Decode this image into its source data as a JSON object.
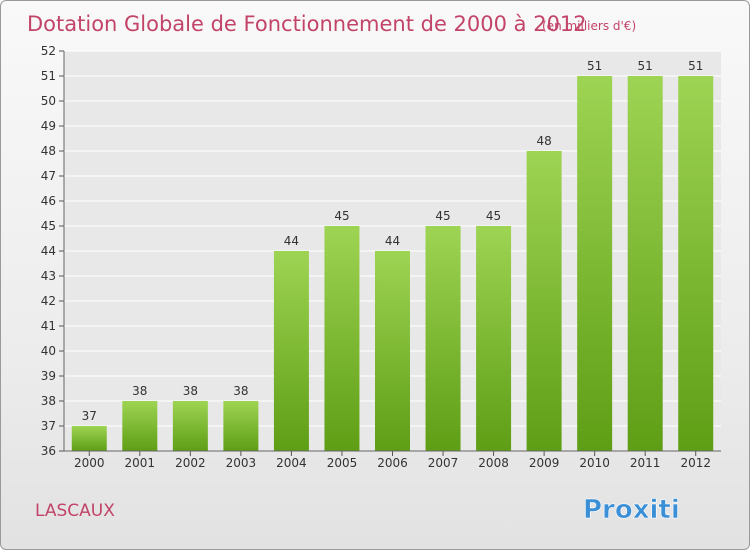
{
  "page": {
    "title": "Dotation Globale de Fonctionnement de 2000 à 2012",
    "unit_note": "(en milliers d'€)",
    "commune": "LASCAUX",
    "logo": "Proxiti"
  },
  "colors": {
    "title": "#c24468",
    "bar_top": "#9ed453",
    "bar_bottom": "#5e9e15",
    "grid": "#ffffff",
    "plot_background": "#e8e8e8"
  },
  "chart_data": {
    "type": "bar",
    "categories": [
      "2000",
      "2001",
      "2002",
      "2003",
      "2004",
      "2005",
      "2006",
      "2007",
      "2008",
      "2009",
      "2010",
      "2011",
      "2012"
    ],
    "values": [
      37,
      38,
      38,
      38,
      44,
      45,
      44,
      45,
      45,
      48,
      51,
      51,
      51
    ],
    "ylim": [
      36,
      52
    ],
    "yticks": [
      36,
      37,
      38,
      39,
      40,
      41,
      42,
      43,
      44,
      45,
      46,
      47,
      48,
      49,
      50,
      51,
      52
    ],
    "grid": true,
    "legend": "none"
  }
}
